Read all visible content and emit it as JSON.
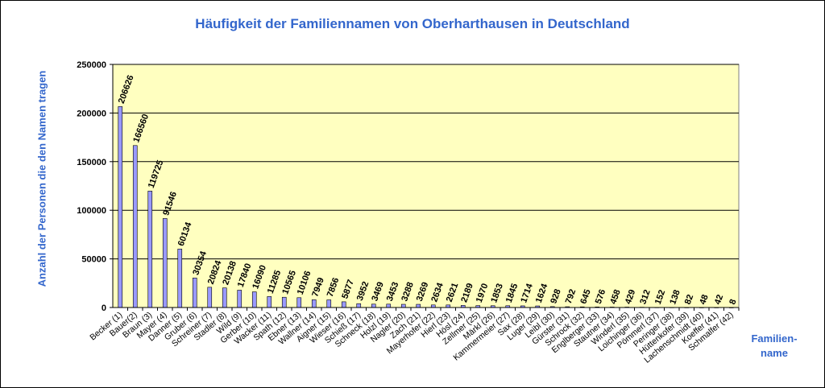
{
  "chart_data": {
    "type": "bar",
    "title": "Häufigkeit der Familiennamen von Oberharthausen  in Deutschland",
    "ylabel": "Anzahl der Personen die den Namen tragen",
    "xlabel_line1": "Familien-",
    "xlabel_line2": "name",
    "ylim": [
      0,
      250000
    ],
    "yticks": [
      0,
      50000,
      100000,
      150000,
      200000,
      250000
    ],
    "grid": true,
    "plot_background": "#ffffc0",
    "bar_color": "#9999ff",
    "title_color": "#3366cc",
    "categories": [
      "Becker (1)",
      "Bauer(2)",
      "Braun (3)",
      "Mayer (4)",
      "Danner (5)",
      "Gruber (6)",
      "Schreiner (7)",
      "Stadler (8)",
      "Wild (9)",
      "Gerber (10)",
      "Wacker (11)",
      "Spath (12)",
      "Ebner (13)",
      "Wallner (14)",
      "Aigner (15)",
      "Wieser (16)",
      "Schieß (17)",
      "Schneck (18)",
      "Holzl (19)",
      "Nagler (20)",
      "Zach (21)",
      "Mayerhofer (22)",
      "Hierl (23)",
      "Hösl (24)",
      "Zellmer (25)",
      "Märkl (26)",
      "Kammermeier (27)",
      "Sax (28)",
      "Luger (29)",
      "Leibl (30)",
      "Gürster (31)",
      "Schrock (32)",
      "Englberger (33)",
      "Stautner (34)",
      "Winderl (35)",
      "Loichinger (36)",
      "Pömmerl (37)",
      "Peringer (38)",
      "Hüttenkofer (39)",
      "Lachenschmidt (40)",
      "Koeffer (41)",
      "Schmalfer (42)"
    ],
    "values": [
      206626,
      166560,
      119725,
      91546,
      60134,
      30354,
      20824,
      20138,
      17840,
      16090,
      11285,
      10565,
      10106,
      7949,
      7856,
      5877,
      3952,
      3469,
      3453,
      3288,
      3269,
      2634,
      2621,
      2189,
      1970,
      1853,
      1845,
      1714,
      1624,
      928,
      792,
      645,
      576,
      458,
      429,
      312,
      152,
      138,
      82,
      48,
      42,
      8
    ]
  }
}
